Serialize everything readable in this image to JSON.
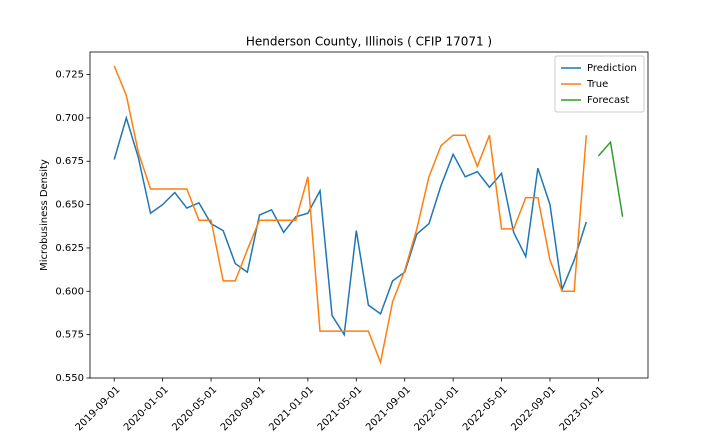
{
  "chart_data": {
    "type": "line",
    "title": "Henderson County, Illinois ( CFIP 17071 )",
    "ylabel": "Microbusiness Density",
    "x": [
      "2019-09-01",
      "2019-10-01",
      "2019-11-01",
      "2019-12-01",
      "2020-01-01",
      "2020-02-01",
      "2020-03-01",
      "2020-04-01",
      "2020-05-01",
      "2020-06-01",
      "2020-07-01",
      "2020-08-01",
      "2020-09-01",
      "2020-10-01",
      "2020-11-01",
      "2020-12-01",
      "2021-01-01",
      "2021-02-01",
      "2021-03-01",
      "2021-04-01",
      "2021-05-01",
      "2021-06-01",
      "2021-07-01",
      "2021-08-01",
      "2021-09-01",
      "2021-10-01",
      "2021-11-01",
      "2021-12-01",
      "2022-01-01",
      "2022-02-01",
      "2022-03-01",
      "2022-04-01",
      "2022-05-01",
      "2022-06-01",
      "2022-07-01",
      "2022-08-01",
      "2022-09-01",
      "2022-10-01",
      "2022-11-01",
      "2022-12-01",
      "2023-01-01",
      "2023-02-01",
      "2023-03-01"
    ],
    "series": [
      {
        "name": "Prediction",
        "color": "#1f77b4",
        "values": [
          0.676,
          0.7,
          0.677,
          0.645,
          0.65,
          0.657,
          0.648,
          0.651,
          0.639,
          0.635,
          0.616,
          0.611,
          0.644,
          0.647,
          0.634,
          0.643,
          0.645,
          0.658,
          0.586,
          0.575,
          0.635,
          0.592,
          0.587,
          0.606,
          0.611,
          0.633,
          0.639,
          0.661,
          0.679,
          0.666,
          0.669,
          0.66,
          0.668,
          0.634,
          0.62,
          0.671,
          0.65,
          0.601,
          0.618,
          0.64,
          null,
          null,
          null
        ]
      },
      {
        "name": "True",
        "color": "#ff7f0e",
        "values": [
          0.73,
          0.713,
          0.68,
          0.659,
          0.659,
          0.659,
          0.659,
          0.641,
          0.641,
          0.606,
          0.606,
          0.624,
          0.641,
          0.641,
          0.641,
          0.641,
          0.666,
          0.577,
          0.577,
          0.577,
          0.577,
          0.577,
          0.559,
          0.594,
          0.612,
          0.636,
          0.666,
          0.684,
          0.69,
          0.69,
          0.672,
          0.69,
          0.636,
          0.636,
          0.654,
          0.654,
          0.618,
          0.6,
          0.6,
          0.69,
          null,
          null,
          null
        ]
      },
      {
        "name": "Forecast",
        "color": "#2ca02c",
        "values": [
          null,
          null,
          null,
          null,
          null,
          null,
          null,
          null,
          null,
          null,
          null,
          null,
          null,
          null,
          null,
          null,
          null,
          null,
          null,
          null,
          null,
          null,
          null,
          null,
          null,
          null,
          null,
          null,
          null,
          null,
          null,
          null,
          null,
          null,
          null,
          null,
          null,
          null,
          null,
          null,
          0.678,
          0.686,
          0.643
        ]
      }
    ],
    "xlim": [
      "2019-07-01",
      "2023-05-04"
    ],
    "xticks": [
      "2019-09-01",
      "2020-01-01",
      "2020-05-01",
      "2020-09-01",
      "2021-01-01",
      "2021-05-01",
      "2021-09-01",
      "2022-01-01",
      "2022-05-01",
      "2022-09-01",
      "2023-01-01"
    ],
    "ylim": [
      0.55,
      0.738
    ],
    "yticks": [
      {
        "value": 0.55,
        "label": "0.550"
      },
      0.575,
      {
        "value": 0.6,
        "label": "0.600"
      },
      0.625,
      {
        "value": 0.65,
        "label": "0.650"
      },
      0.675,
      {
        "value": 0.7,
        "label": "0.700"
      },
      0.725
    ],
    "legend": "upper right"
  }
}
